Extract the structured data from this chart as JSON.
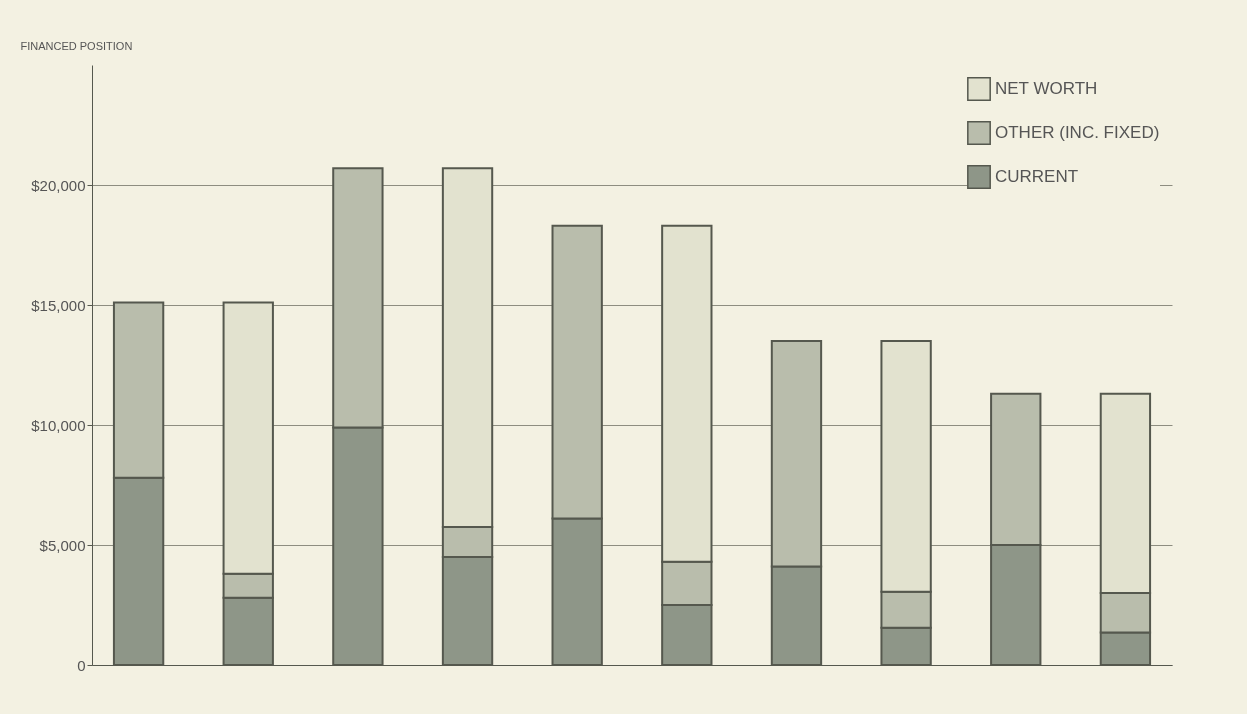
{
  "chart_data": {
    "type": "bar",
    "stacked": true,
    "ylabel": "FINANCED POSITION",
    "categories": [
      null,
      null,
      null,
      null,
      null,
      null,
      null,
      null,
      null,
      null
    ],
    "series": [
      {
        "name": "CURRENT",
        "color": "#8e9688",
        "values": [
          7800,
          2800,
          9900,
          4500,
          6100,
          2500,
          4100,
          1550,
          5000,
          1350
        ]
      },
      {
        "name": "OTHER (INC. FIXED)",
        "color": "#b9bdac",
        "values": [
          7300,
          1000,
          10800,
          1250,
          12200,
          1800,
          9400,
          1500,
          6300,
          1650
        ]
      },
      {
        "name": "NET WORTH",
        "color": "#e2e2cf",
        "values": [
          null,
          11300,
          null,
          14950,
          null,
          14000,
          null,
          10450,
          null,
          8300
        ]
      }
    ],
    "ylim": [
      0,
      25000
    ],
    "yticks": [
      0,
      {
        "value": 5000,
        "label": "$5,000"
      },
      {
        "value": 10000,
        "label": "$10,000"
      },
      {
        "value": 15000,
        "label": "$15,000"
      },
      {
        "value": 20000,
        "label": "$20,000"
      }
    ],
    "grid": "y",
    "legend": "top right",
    "tick_labels": "y"
  }
}
